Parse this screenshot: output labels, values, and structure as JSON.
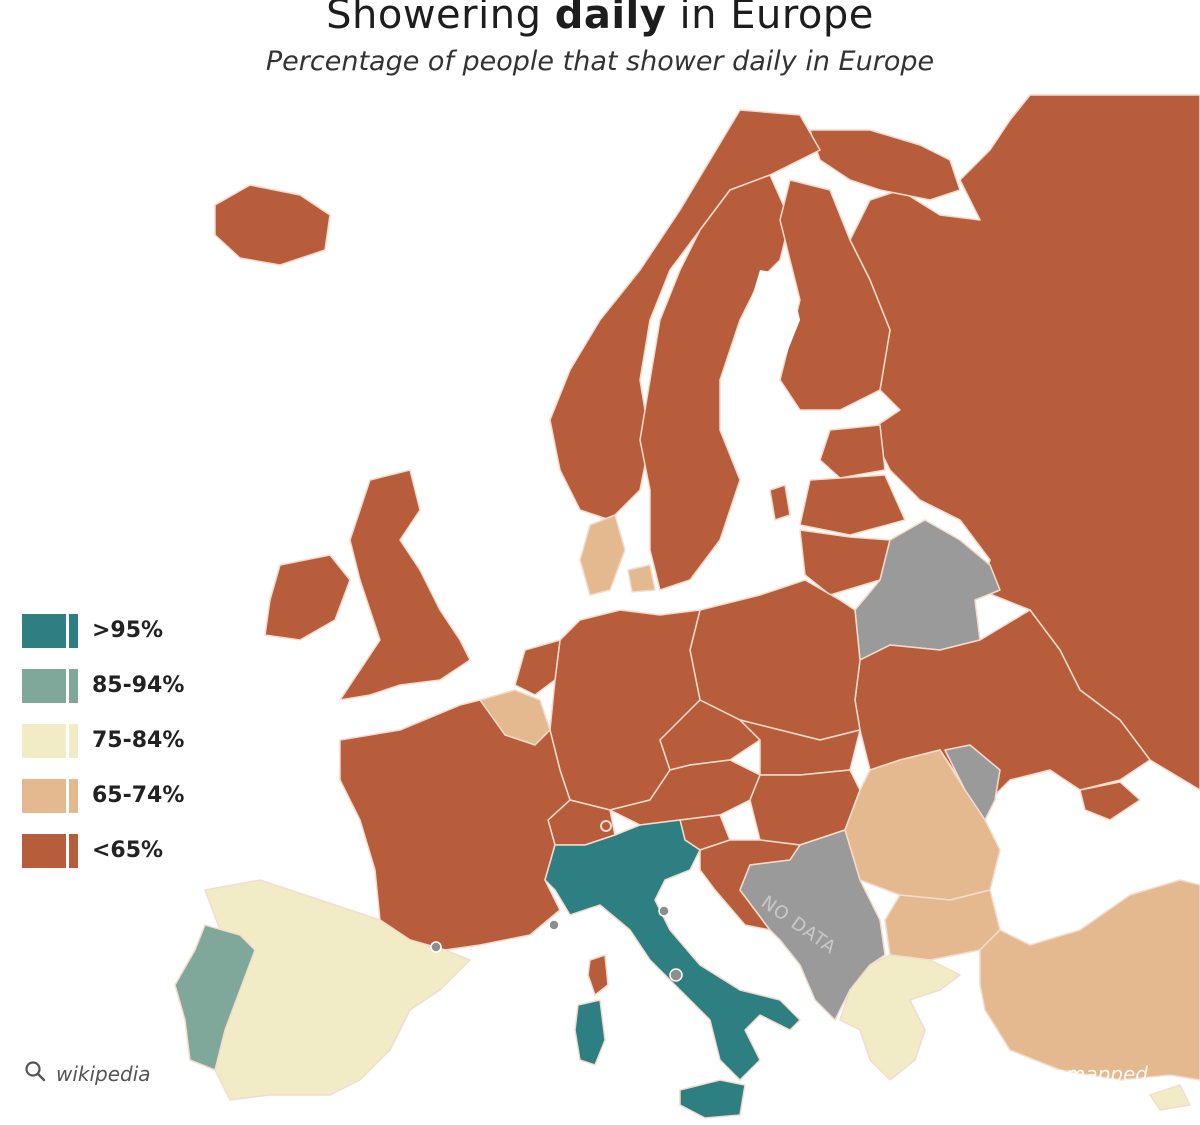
{
  "title": {
    "prefix": "Showering",
    "emphasis": "daily",
    "suffix": "in Europe"
  },
  "subtitle": "Percentage of people that shower daily in Europe",
  "legend": [
    {
      "label": ">95%",
      "color": "#2e7f82"
    },
    {
      "label": "85-94%",
      "color": "#7fa89a"
    },
    {
      "label": "75-84%",
      "color": "#f1ebc6"
    },
    {
      "label": "65-74%",
      "color": "#e4b98f"
    },
    {
      "label": "<65%",
      "color": "#b85d3b"
    }
  ],
  "no_data": {
    "label": "NO DATA",
    "color": "#9a9a9a"
  },
  "source": "wikipedia",
  "credit": "@geomapped",
  "colors": {
    "background": "#ffffff",
    "border": "#f4dccd"
  }
}
